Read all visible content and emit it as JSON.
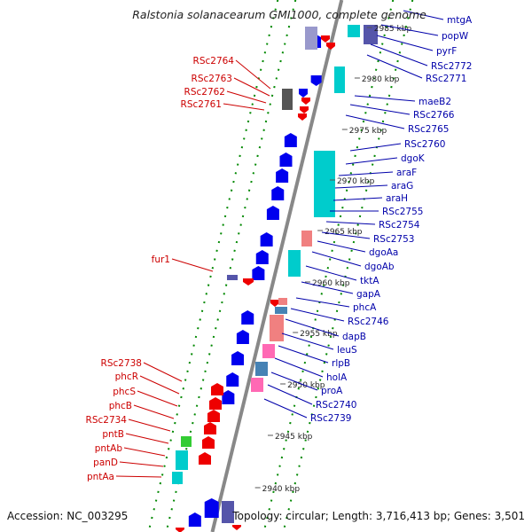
{
  "title": "Ralstonia solanacearum GMI1000, complete genome",
  "footer": {
    "accession": "Accession: NC_003295",
    "summary": "Topology: circular; Length: 3,716,413 bp; Genes: 3,501"
  },
  "ticks": [
    "2985 kbp",
    "2980 kbp",
    "2975 kbp",
    "2970 kbp",
    "2965 kbp",
    "2960 kbp",
    "2955 kbp",
    "2950 kbp",
    "2945 kbp",
    "2940 kbp"
  ],
  "left_labels": [
    "RSc2764",
    "RSc2763",
    "RSc2762",
    "RSc2761",
    "fur1",
    "RSc2738",
    "phcR",
    "phcS",
    "phcB",
    "RSc2734",
    "pntB",
    "pntAb",
    "panD",
    "pntAa"
  ],
  "right_labels": [
    "mtgA",
    "popW",
    "pyrF",
    "RSc2772",
    "RSc2771",
    "maeB2",
    "RSc2766",
    "RSc2765",
    "RSc2760",
    "dgoK",
    "araF",
    "araG",
    "araH",
    "RSc2755",
    "RSc2754",
    "RSc2753",
    "dgoAa",
    "dgoAb",
    "tktA",
    "gapA",
    "phcA",
    "RSc2746",
    "dapB",
    "leuS",
    "rlpB",
    "holA",
    "proA",
    "RSc2740",
    "RSc2739"
  ],
  "colors": {
    "left_label": "#cc0000",
    "right_label": "#0000aa",
    "forward_gene": "#0000ee",
    "reverse_gene": "#ee0000",
    "feature_cyan": "#00cccc",
    "feature_pink": "#ff69b4",
    "feature_salmon": "#f08080",
    "feature_green": "#33cc33",
    "feature_steel": "#4682b4",
    "feature_slate": "#5555aa",
    "backbone": "#888888",
    "dots": "#008800"
  }
}
